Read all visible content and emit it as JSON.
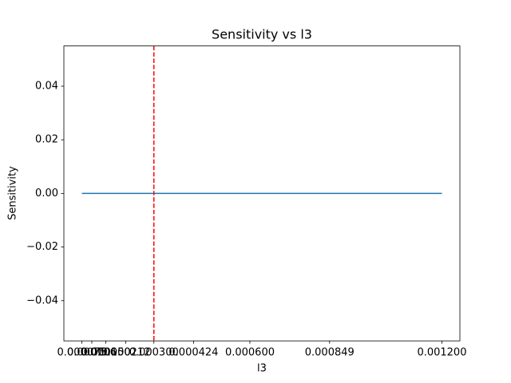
{
  "chart_data": {
    "type": "line",
    "title": "Sensitivity vs l3",
    "x_label": "l3",
    "y_label": "Sensitivity",
    "x": [
      7.5e-05,
      0.000106,
      0.00015,
      0.000212,
      0.0003,
      0.000424,
      0.0006,
      0.000849,
      0.0012
    ],
    "series": [
      {
        "color": "#1f77b4",
        "values": [
          0,
          0,
          0,
          0,
          0,
          0,
          0,
          0,
          0
        ]
      }
    ],
    "xlim": [
      1.875e-05,
      0.00125625
    ],
    "xticks": [
      7.5e-05,
      0.000106,
      {
        "value": 0.00015,
        "label": "0.000150"
      },
      0.000212,
      {
        "value": 0.0003,
        "label": "0.000300"
      },
      0.000424,
      {
        "value": 0.0006,
        "label": "0.000600"
      },
      0.000849,
      {
        "value": 0.0012,
        "label": "0.001200"
      }
    ],
    "ylim": [
      -0.055,
      0.055
    ],
    "yticks": [
      {
        "value": -0.04,
        "label": "−0.04"
      },
      {
        "value": -0.02,
        "label": "−0.02"
      },
      {
        "value": 0,
        "label": "0.00"
      },
      {
        "value": 0.02,
        "label": "0.02"
      },
      {
        "value": 0.04,
        "label": "0.04"
      }
    ],
    "vline": {
      "x": 0.0003,
      "color": "#ff0000"
    }
  }
}
